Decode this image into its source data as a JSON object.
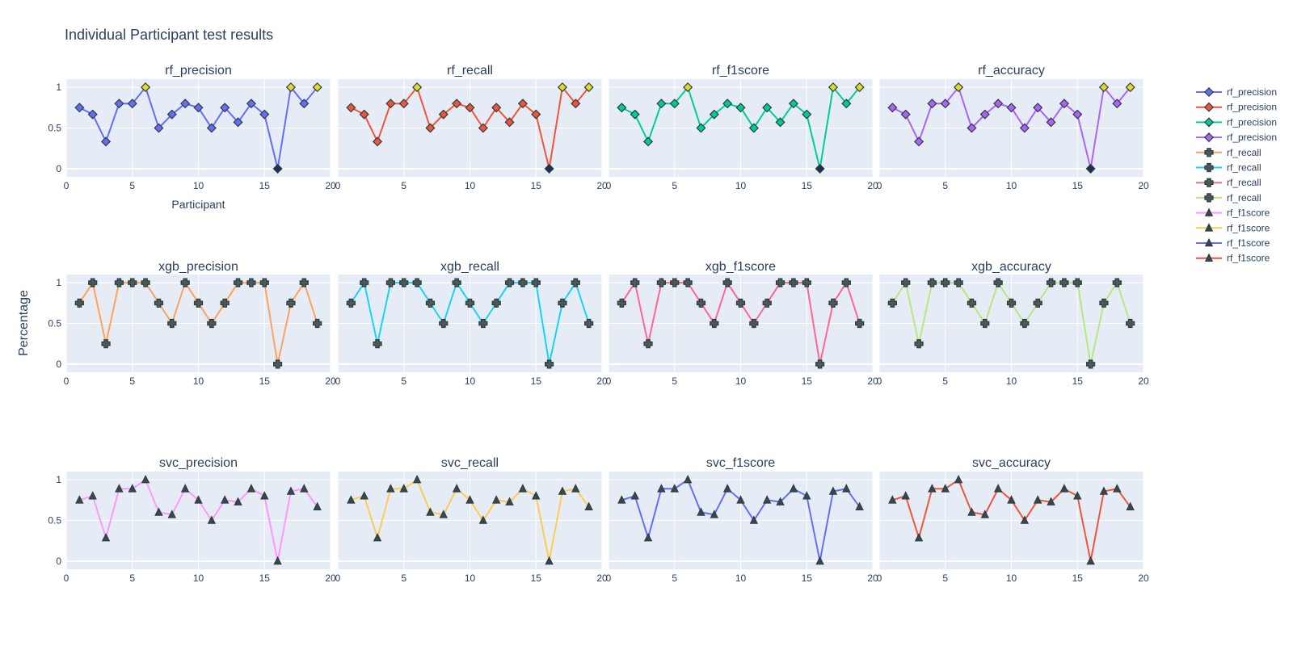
{
  "chart_data": {
    "type": "line",
    "title": "Individual Participant test results",
    "x_axis_label": "Participant",
    "y_axis_label": "Percentage",
    "xlim": [
      0,
      20
    ],
    "ylim": [
      -0.1,
      1.1
    ],
    "x_ticks": [
      0,
      5,
      10,
      15,
      20
    ],
    "y_ticks": [
      0,
      0.5,
      1
    ],
    "grid": true,
    "legend_position": "right",
    "x": [
      1,
      2,
      3,
      4,
      5,
      6,
      7,
      8,
      9,
      10,
      11,
      12,
      13,
      14,
      15,
      16,
      17,
      18,
      19
    ],
    "panels": [
      {
        "name": "rf_precision",
        "color": "#636efa",
        "marker": "diamond",
        "row": 0,
        "col": 0,
        "values": [
          0.75,
          0.667,
          0.333,
          0.8,
          0.8,
          1.0,
          0.5,
          0.667,
          0.8,
          0.75,
          0.5,
          0.75,
          0.571,
          0.8,
          0.667,
          0.0,
          1.0,
          0.8,
          1.0
        ]
      },
      {
        "name": "rf_recall",
        "color": "#EF553B",
        "marker": "diamond",
        "row": 0,
        "col": 1,
        "values": [
          0.75,
          0.667,
          0.333,
          0.8,
          0.8,
          1.0,
          0.5,
          0.667,
          0.8,
          0.75,
          0.5,
          0.75,
          0.571,
          0.8,
          0.667,
          0.0,
          1.0,
          0.8,
          1.0
        ]
      },
      {
        "name": "rf_f1score",
        "color": "#00cc96",
        "marker": "diamond",
        "row": 0,
        "col": 2,
        "values": [
          0.75,
          0.667,
          0.333,
          0.8,
          0.8,
          1.0,
          0.5,
          0.667,
          0.8,
          0.75,
          0.5,
          0.75,
          0.571,
          0.8,
          0.667,
          0.0,
          1.0,
          0.8,
          1.0
        ]
      },
      {
        "name": "rf_accuracy",
        "color": "#ab63fa",
        "marker": "diamond",
        "row": 0,
        "col": 3,
        "values": [
          0.75,
          0.667,
          0.333,
          0.8,
          0.8,
          1.0,
          0.5,
          0.667,
          0.8,
          0.75,
          0.5,
          0.75,
          0.571,
          0.8,
          0.667,
          0.0,
          1.0,
          0.8,
          1.0
        ]
      },
      {
        "name": "xgb_precision",
        "color": "#FFA15A",
        "marker": "cross",
        "row": 1,
        "col": 0,
        "values": [
          0.75,
          1.0,
          0.25,
          1.0,
          1.0,
          1.0,
          0.75,
          0.5,
          1.0,
          0.75,
          0.5,
          0.75,
          1.0,
          1.0,
          1.0,
          0.0,
          0.75,
          1.0,
          0.5
        ]
      },
      {
        "name": "xgb_recall",
        "color": "#19d3f3",
        "marker": "cross",
        "row": 1,
        "col": 1,
        "values": [
          0.75,
          1.0,
          0.25,
          1.0,
          1.0,
          1.0,
          0.75,
          0.5,
          1.0,
          0.75,
          0.5,
          0.75,
          1.0,
          1.0,
          1.0,
          0.0,
          0.75,
          1.0,
          0.5
        ]
      },
      {
        "name": "xgb_f1score",
        "color": "#FF6692",
        "marker": "cross",
        "row": 1,
        "col": 2,
        "values": [
          0.75,
          1.0,
          0.25,
          1.0,
          1.0,
          1.0,
          0.75,
          0.5,
          1.0,
          0.75,
          0.5,
          0.75,
          1.0,
          1.0,
          1.0,
          0.0,
          0.75,
          1.0,
          0.5
        ]
      },
      {
        "name": "xgb_accuracy",
        "color": "#B6E880",
        "marker": "cross",
        "row": 1,
        "col": 3,
        "values": [
          0.75,
          1.0,
          0.25,
          1.0,
          1.0,
          1.0,
          0.75,
          0.5,
          1.0,
          0.75,
          0.5,
          0.75,
          1.0,
          1.0,
          1.0,
          0.0,
          0.75,
          1.0,
          0.5
        ]
      },
      {
        "name": "svc_precision",
        "color": "#FF97FF",
        "marker": "triangle",
        "row": 2,
        "col": 0,
        "values": [
          0.75,
          0.8,
          0.286,
          0.889,
          0.889,
          1.0,
          0.6,
          0.571,
          0.889,
          0.75,
          0.5,
          0.75,
          0.727,
          0.889,
          0.8,
          0.0,
          0.857,
          0.889,
          0.667
        ]
      },
      {
        "name": "svc_recall",
        "color": "#FECB52",
        "marker": "triangle",
        "row": 2,
        "col": 1,
        "values": [
          0.75,
          0.8,
          0.286,
          0.889,
          0.889,
          1.0,
          0.6,
          0.571,
          0.889,
          0.75,
          0.5,
          0.75,
          0.727,
          0.889,
          0.8,
          0.0,
          0.857,
          0.889,
          0.667
        ]
      },
      {
        "name": "svc_f1score",
        "color": "#636efa",
        "marker": "triangle",
        "row": 2,
        "col": 2,
        "values": [
          0.75,
          0.8,
          0.286,
          0.889,
          0.889,
          1.0,
          0.6,
          0.571,
          0.889,
          0.75,
          0.5,
          0.75,
          0.727,
          0.889,
          0.8,
          0.0,
          0.857,
          0.889,
          0.667
        ]
      },
      {
        "name": "svc_accuracy",
        "color": "#EF553B",
        "marker": "triangle",
        "row": 2,
        "col": 3,
        "values": [
          0.75,
          0.8,
          0.286,
          0.889,
          0.889,
          1.0,
          0.6,
          0.571,
          0.889,
          0.75,
          0.5,
          0.75,
          0.727,
          0.889,
          0.8,
          0.0,
          0.857,
          0.889,
          0.667
        ]
      }
    ],
    "legend": [
      {
        "label": "rf_precision",
        "color": "#636efa",
        "marker": "diamond"
      },
      {
        "label": "rf_precision",
        "color": "#EF553B",
        "marker": "diamond"
      },
      {
        "label": "rf_precision",
        "color": "#00cc96",
        "marker": "diamond"
      },
      {
        "label": "rf_precision",
        "color": "#ab63fa",
        "marker": "diamond"
      },
      {
        "label": "rf_recall",
        "color": "#FFA15A",
        "marker": "cross"
      },
      {
        "label": "rf_recall",
        "color": "#19d3f3",
        "marker": "cross"
      },
      {
        "label": "rf_recall",
        "color": "#FF6692",
        "marker": "cross"
      },
      {
        "label": "rf_recall",
        "color": "#B6E880",
        "marker": "cross"
      },
      {
        "label": "rf_f1score",
        "color": "#FF97FF",
        "marker": "triangle"
      },
      {
        "label": "rf_f1score",
        "color": "#FECB52",
        "marker": "triangle"
      },
      {
        "label": "rf_f1score",
        "color": "#636efa",
        "marker": "triangle"
      },
      {
        "label": "rf_f1score",
        "color": "#EF553B",
        "marker": "triangle"
      }
    ],
    "colors": {
      "plot_background": "#E5ECF6",
      "grid": "#ffffff",
      "text": "#2a3f5f",
      "marker_fill": "#2a3f5f",
      "highlight_fill": "#dddd22",
      "low_fill": "#1f2f55"
    }
  }
}
